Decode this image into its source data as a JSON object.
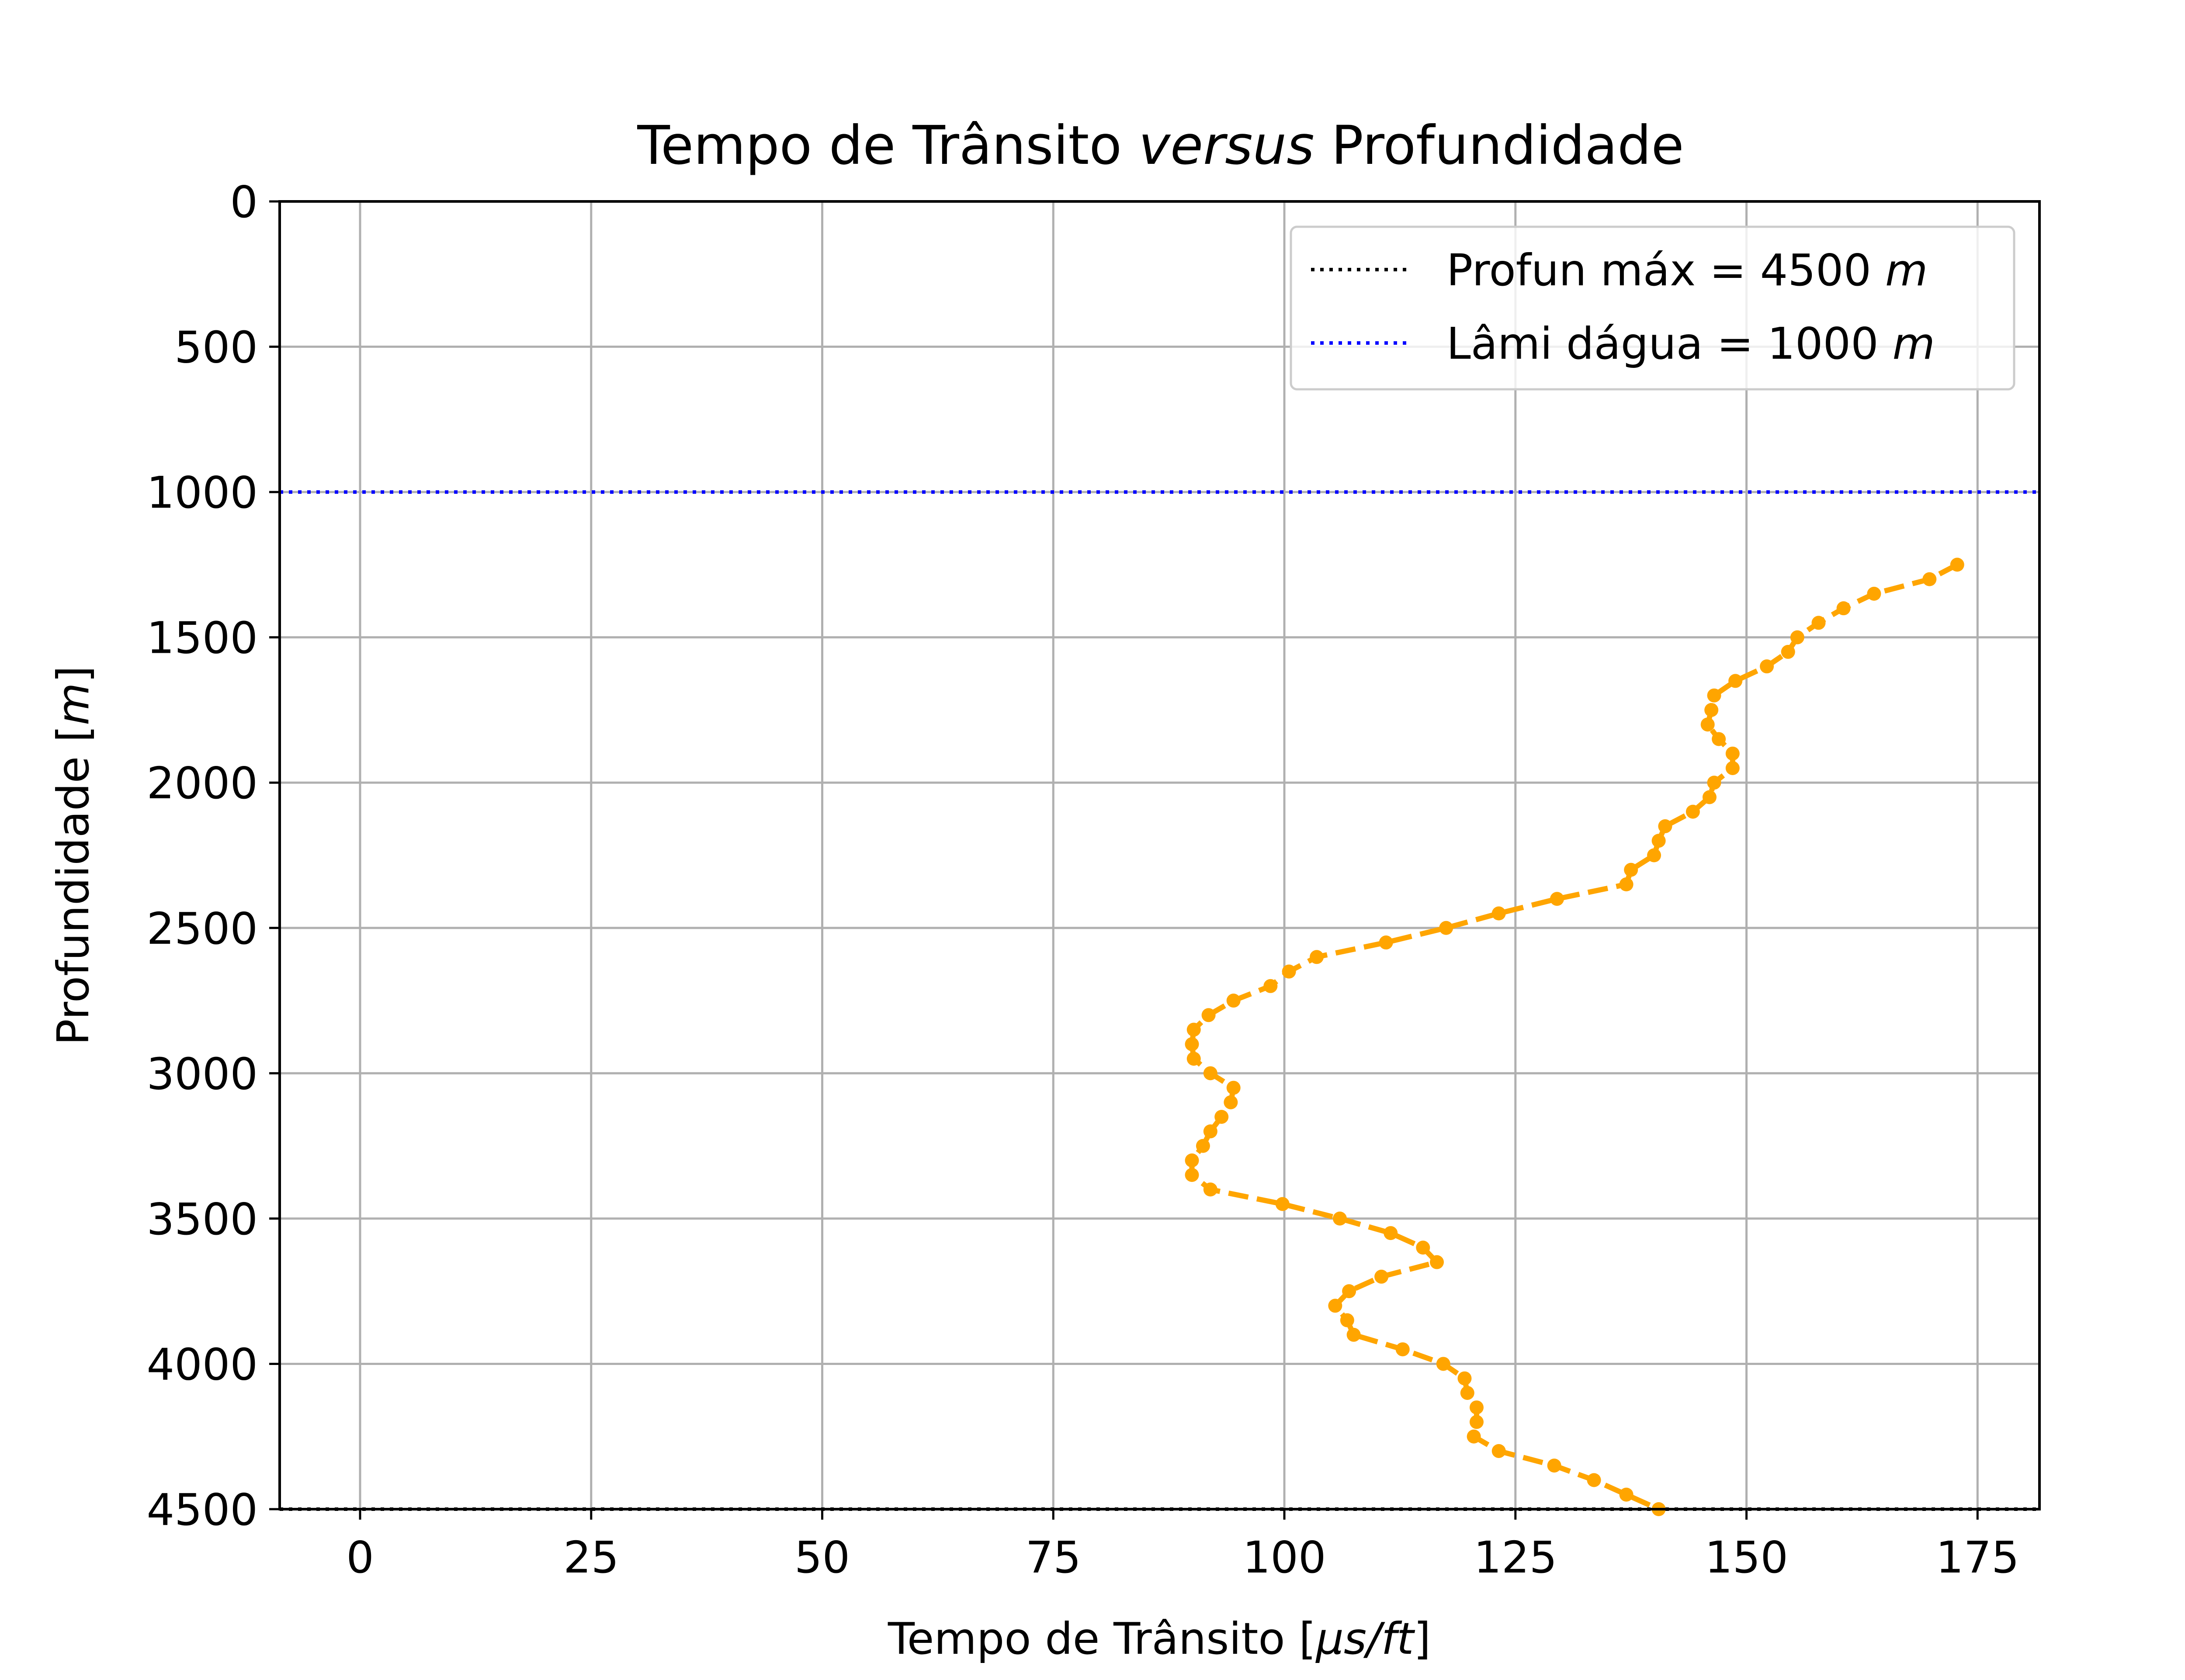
{
  "chart_data": {
    "type": "line",
    "title": "Tempo de Trânsito versus Profundidade",
    "title_parts": [
      {
        "text": "Tempo de Trânsito ",
        "italic": false
      },
      {
        "text": "versus",
        "italic": true
      },
      {
        "text": " Profundidade",
        "italic": false
      }
    ],
    "xlabel": "Tempo de Trânsito [μs/ft]",
    "xlabel_parts": [
      {
        "text": "Tempo de Trânsito [",
        "italic": false
      },
      {
        "text": "μs/ft",
        "italic": true
      },
      {
        "text": "]",
        "italic": false
      }
    ],
    "ylabel": "Profundidade [m]",
    "ylabel_parts": [
      {
        "text": "Profundidade [",
        "italic": false
      },
      {
        "text": "m",
        "italic": true
      },
      {
        "text": "]",
        "italic": false
      }
    ],
    "xlim": [
      -8.7,
      181.7
    ],
    "ylim": [
      4500,
      0
    ],
    "y_inverted": true,
    "xticks": [
      "0",
      "25",
      "50",
      "75",
      "100",
      "125",
      "150",
      "175"
    ],
    "xtick_values": [
      0,
      25,
      50,
      75,
      100,
      125,
      150,
      175
    ],
    "yticks": [
      "0",
      "500",
      "1000",
      "1500",
      "2000",
      "2500",
      "3000",
      "3500",
      "4000",
      "4500"
    ],
    "ytick_values": [
      0,
      500,
      1000,
      1500,
      2000,
      2500,
      3000,
      3500,
      4000,
      4500
    ],
    "grid": true,
    "legend_position": "top-right",
    "legend": [
      {
        "label": "Profun máx = 4500 m",
        "prefix": "Profun máx = 4500 ",
        "unit": "m",
        "color": "#000000",
        "style": "dotted"
      },
      {
        "label": "Lâmi dágua = 1000 m",
        "prefix": "Lâmi dágua = 1000 ",
        "unit": "m",
        "color": "#0000ff",
        "style": "dotted"
      }
    ],
    "hlines": [
      {
        "name": "Profun máx = 4500 m",
        "y": 4500,
        "color": "#000000",
        "style": "dotted"
      },
      {
        "name": "Lâmi dágua = 1000 m",
        "y": 1000,
        "color": "#0000ff",
        "style": "dotted"
      }
    ],
    "series": [
      {
        "color": "#ffa500",
        "style": "dashed",
        "marker": "circle",
        "points": [
          [
            172.8,
            1250
          ],
          [
            169.8,
            1300
          ],
          [
            163.8,
            1350
          ],
          [
            160.5,
            1400
          ],
          [
            157.8,
            1450
          ],
          [
            155.5,
            1500
          ],
          [
            154.5,
            1550
          ],
          [
            152.2,
            1600
          ],
          [
            148.8,
            1650
          ],
          [
            146.5,
            1700
          ],
          [
            146.2,
            1750
          ],
          [
            145.8,
            1800
          ],
          [
            147.0,
            1850
          ],
          [
            148.5,
            1900
          ],
          [
            148.5,
            1950
          ],
          [
            146.5,
            2000
          ],
          [
            146.0,
            2050
          ],
          [
            144.2,
            2100
          ],
          [
            141.2,
            2150
          ],
          [
            140.5,
            2200
          ],
          [
            140.0,
            2250
          ],
          [
            137.5,
            2300
          ],
          [
            137.0,
            2350
          ],
          [
            129.5,
            2400
          ],
          [
            123.2,
            2450
          ],
          [
            117.5,
            2500
          ],
          [
            111.0,
            2550
          ],
          [
            103.5,
            2600
          ],
          [
            100.5,
            2650
          ],
          [
            98.5,
            2700
          ],
          [
            94.5,
            2750
          ],
          [
            91.8,
            2800
          ],
          [
            90.2,
            2850
          ],
          [
            90.0,
            2900
          ],
          [
            90.2,
            2950
          ],
          [
            92.0,
            3000
          ],
          [
            94.5,
            3050
          ],
          [
            94.2,
            3100
          ],
          [
            93.2,
            3150
          ],
          [
            92.0,
            3200
          ],
          [
            91.2,
            3250
          ],
          [
            90.0,
            3300
          ],
          [
            90.0,
            3350
          ],
          [
            92.0,
            3400
          ],
          [
            99.8,
            3450
          ],
          [
            106.0,
            3500
          ],
          [
            111.5,
            3550
          ],
          [
            115.0,
            3600
          ],
          [
            116.5,
            3650
          ],
          [
            110.5,
            3700
          ],
          [
            107.0,
            3750
          ],
          [
            105.5,
            3800
          ],
          [
            106.8,
            3850
          ],
          [
            107.5,
            3900
          ],
          [
            112.8,
            3950
          ],
          [
            117.2,
            4000
          ],
          [
            119.5,
            4050
          ],
          [
            119.8,
            4100
          ],
          [
            120.8,
            4150
          ],
          [
            120.8,
            4200
          ],
          [
            120.5,
            4250
          ],
          [
            123.2,
            4300
          ],
          [
            129.2,
            4350
          ],
          [
            133.5,
            4400
          ],
          [
            137.0,
            4450
          ],
          [
            140.5,
            4500
          ]
        ]
      }
    ]
  }
}
